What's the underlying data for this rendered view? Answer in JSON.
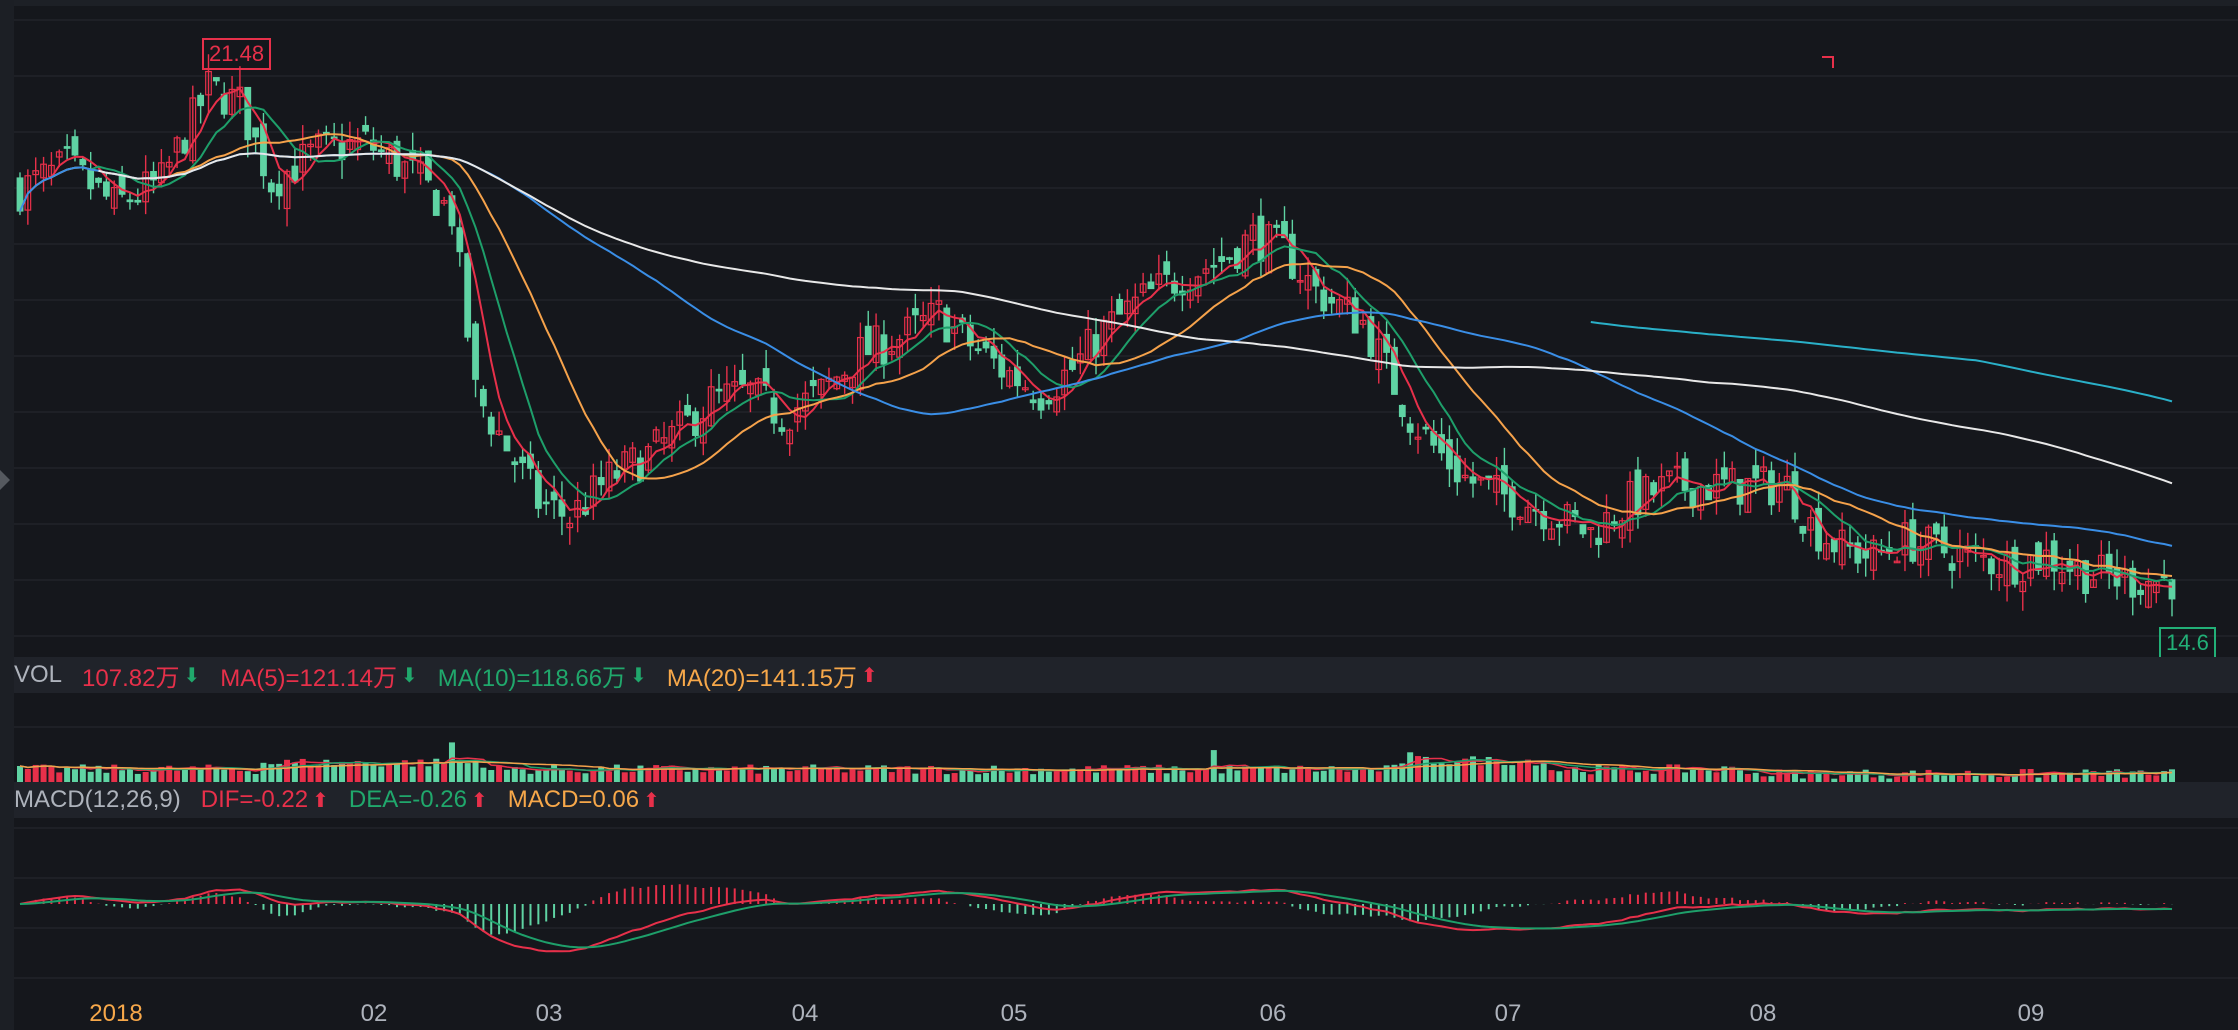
{
  "vol_header": {
    "label": "VOL",
    "items": [
      {
        "text": "107.82万",
        "color": "#e7304a",
        "arrow": "down",
        "arrow_color": "#20a86c"
      },
      {
        "text": "MA(5)=121.14万",
        "color": "#e7304a",
        "arrow": "down",
        "arrow_color": "#20a86c"
      },
      {
        "text": "MA(10)=118.66万",
        "color": "#20a86c",
        "arrow": "down",
        "arrow_color": "#20a86c"
      },
      {
        "text": "MA(20)=141.15万",
        "color": "#f7a84a",
        "arrow": "up",
        "arrow_color": "#e7304a"
      }
    ]
  },
  "macd_header": {
    "label": "MACD(12,26,9)",
    "items": [
      {
        "text": "DIF=-0.22",
        "color": "#e7304a",
        "arrow": "up",
        "arrow_color": "#e7304a"
      },
      {
        "text": "DEA=-0.26",
        "color": "#20a86c",
        "arrow": "up",
        "arrow_color": "#e7304a"
      },
      {
        "text": "MACD=0.06",
        "color": "#f7a84a",
        "arrow": "up",
        "arrow_color": "#e7304a"
      }
    ]
  },
  "price_labels": {
    "high": "21.48",
    "low": "14.6"
  },
  "x_axis": [
    "2018",
    "02",
    "03",
    "04",
    "05",
    "06",
    "07",
    "08",
    "09"
  ],
  "colors": {
    "up": "#e7304a",
    "down": "#5fd3a3",
    "ma5": "#e7304a",
    "ma10": "#1e9f6a",
    "ma20": "#f5a24b",
    "ma60": "#3a8ee6",
    "ma120": "#e8e8e8",
    "ma250": "#2ab0c8",
    "grid": "#262a31",
    "background": "#15171c"
  },
  "chart_data": {
    "type": "candlestick",
    "x_axis_labels": [
      "2018",
      "02",
      "03",
      "04",
      "05",
      "06",
      "07",
      "08",
      "09"
    ],
    "ylim": [
      14.0,
      22.2
    ],
    "price_high": 21.48,
    "price_low": 14.6,
    "close_series": [
      [
        0,
        19.9
      ],
      [
        6,
        20.2
      ],
      [
        12,
        19.7
      ],
      [
        18,
        20.0
      ],
      [
        24,
        21.2
      ],
      [
        28,
        21.0
      ],
      [
        32,
        20.0
      ],
      [
        38,
        20.4
      ],
      [
        44,
        20.5
      ],
      [
        50,
        20.1
      ],
      [
        55,
        19.6
      ],
      [
        58,
        17.3
      ],
      [
        62,
        16.6
      ],
      [
        66,
        15.9
      ],
      [
        70,
        15.7
      ],
      [
        75,
        16.2
      ],
      [
        80,
        16.5
      ],
      [
        84,
        16.8
      ],
      [
        88,
        17.2
      ],
      [
        93,
        17.3
      ],
      [
        97,
        17.0
      ],
      [
        102,
        17.3
      ],
      [
        107,
        17.8
      ],
      [
        112,
        18.0
      ],
      [
        117,
        18.3
      ],
      [
        120,
        18.0
      ],
      [
        125,
        17.6
      ],
      [
        130,
        17.3
      ],
      [
        134,
        17.6
      ],
      [
        138,
        18.1
      ],
      [
        143,
        18.5
      ],
      [
        148,
        18.8
      ],
      [
        153,
        19.0
      ],
      [
        157,
        19.3
      ],
      [
        161,
        19.1
      ],
      [
        165,
        18.6
      ],
      [
        168,
        18.4
      ],
      [
        171,
        18.2
      ],
      [
        174,
        17.6
      ],
      [
        177,
        17.0
      ],
      [
        180,
        16.6
      ],
      [
        184,
        16.2
      ],
      [
        188,
        16.0
      ],
      [
        192,
        15.9
      ],
      [
        196,
        15.7
      ],
      [
        200,
        15.5
      ],
      [
        205,
        15.9
      ],
      [
        210,
        16.1
      ],
      [
        215,
        16.1
      ],
      [
        220,
        16.1
      ],
      [
        225,
        16.1
      ],
      [
        228,
        15.6
      ],
      [
        232,
        15.3
      ],
      [
        236,
        15.2
      ],
      [
        240,
        15.4
      ],
      [
        244,
        15.3
      ],
      [
        248,
        15.2
      ],
      [
        253,
        15.1
      ],
      [
        258,
        15.2
      ],
      [
        263,
        15.0
      ],
      [
        268,
        14.9
      ],
      [
        273,
        14.9
      ]
    ],
    "volume": {
      "unit": "万",
      "latest": 107.82,
      "ma5": 121.14,
      "ma10": 118.66,
      "ma20": 141.15
    },
    "macd": {
      "params": "12,26,9",
      "dif": -0.22,
      "dea": -0.26,
      "macd": 0.06
    }
  }
}
